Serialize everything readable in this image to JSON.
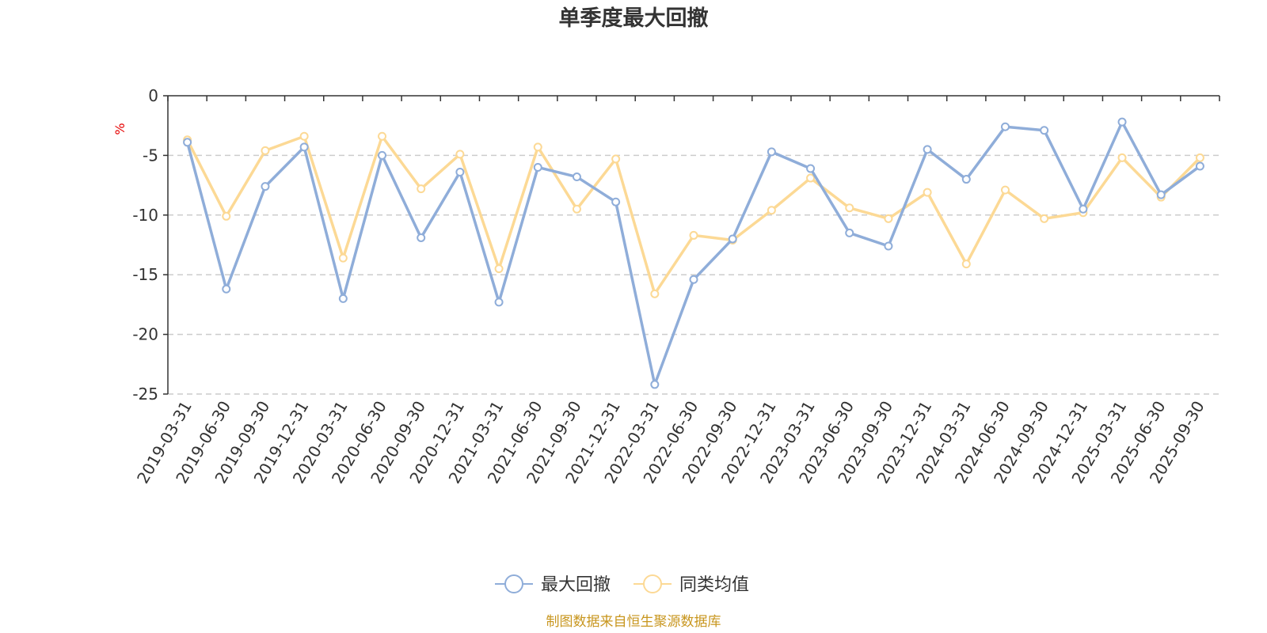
{
  "chart_data": {
    "type": "line",
    "title": "单季度最大回撤",
    "ylabel": "%",
    "ylim": [
      -25,
      0
    ],
    "yticks": [
      0,
      -5,
      -10,
      -15,
      -20,
      -25
    ],
    "grid": true,
    "legend_position": "bottom",
    "categories": [
      "2019-03-31",
      "2019-06-30",
      "2019-09-30",
      "2019-12-31",
      "2020-03-31",
      "2020-06-30",
      "2020-09-30",
      "2020-12-31",
      "2021-03-31",
      "2021-06-30",
      "2021-09-30",
      "2021-12-31",
      "2022-03-31",
      "2022-06-30",
      "2022-09-30",
      "2022-12-31",
      "2023-03-31",
      "2023-06-30",
      "2023-09-30",
      "2023-12-31",
      "2024-03-31",
      "2024-06-30",
      "2024-09-30",
      "2024-12-31",
      "2025-03-31",
      "2025-06-30",
      "2025-09-30"
    ],
    "series": [
      {
        "name": "最大回撤",
        "color": "#8fadd9",
        "values": [
          -3.9,
          -16.2,
          -7.6,
          -4.3,
          -17.0,
          -5.0,
          -11.9,
          -6.4,
          -17.3,
          -6.0,
          -6.8,
          -8.9,
          -24.2,
          -15.4,
          -12.0,
          -4.7,
          -6.1,
          -11.5,
          -12.6,
          -4.5,
          -7.0,
          -2.6,
          -2.9,
          -9.5,
          -2.2,
          -8.3,
          -5.9
        ]
      },
      {
        "name": "同类均值",
        "color": "#fcd995",
        "values": [
          -3.7,
          -10.1,
          -4.6,
          -3.4,
          -13.6,
          -3.4,
          -7.8,
          -4.9,
          -14.5,
          -4.3,
          -9.5,
          -5.3,
          -16.6,
          -11.7,
          -12.1,
          -9.6,
          -6.9,
          -9.4,
          -10.3,
          -8.1,
          -14.1,
          -7.9,
          -10.3,
          -9.8,
          -5.2,
          -8.5,
          -5.2
        ]
      }
    ]
  },
  "footer": {
    "source": "制图数据来自恒生聚源数据库"
  }
}
